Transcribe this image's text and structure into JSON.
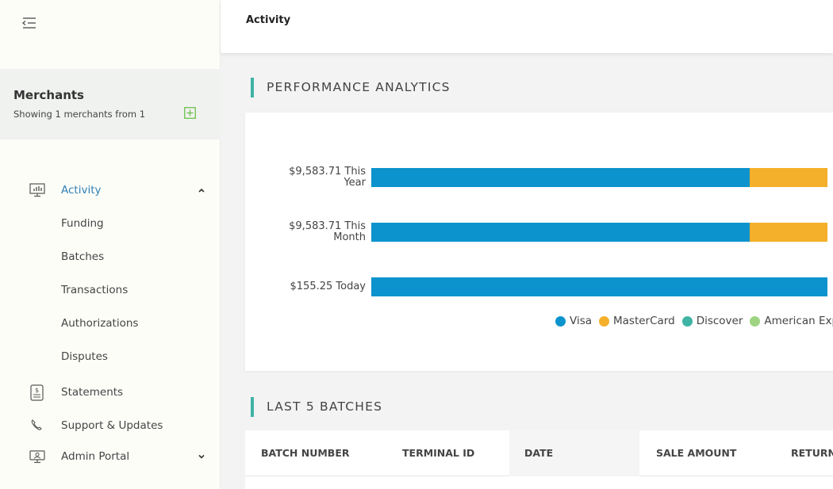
{
  "header": {
    "title": "Activity"
  },
  "merchants": {
    "title": "Merchants",
    "summary": "Showing 1 merchants from 1"
  },
  "nav": {
    "activity": "Activity",
    "sub_items": [
      "Funding",
      "Batches",
      "Transactions",
      "Authorizations",
      "Disputes"
    ],
    "statements": "Statements",
    "support": "Support & Updates",
    "admin": "Admin Portal"
  },
  "analytics": {
    "title": "PERFORMANCE ANALYTICS"
  },
  "chart_data": {
    "type": "bar",
    "orientation": "horizontal",
    "stacked": true,
    "categories": [
      {
        "amount": "$9,583.71",
        "line1": "$9,583.71 This",
        "line2": "Year"
      },
      {
        "amount": "$9,583.71",
        "line1": "$9,583.71 This",
        "line2": "Month"
      },
      {
        "amount": "$155.25",
        "line1": "$155.25 Today",
        "line2": ""
      }
    ],
    "series": [
      {
        "name": "Visa",
        "color": "#0c93cd",
        "values": [
          0.83,
          0.83,
          1.0
        ]
      },
      {
        "name": "MasterCard",
        "color": "#f5b02b",
        "values": [
          0.17,
          0.17,
          0
        ]
      },
      {
        "name": "Discover",
        "color": "#3fb3a4",
        "values": [
          0,
          0,
          0
        ]
      },
      {
        "name": "American Express",
        "color": "#9ed481",
        "values": [
          0,
          0,
          0
        ]
      }
    ],
    "legend": [
      "Visa",
      "MasterCard",
      "Discover",
      "American Expr"
    ]
  },
  "batches": {
    "title": "LAST 5 BATCHES",
    "columns": [
      "BATCH NUMBER",
      "TERMINAL ID",
      "DATE",
      "SALE AMOUNT",
      "RETURN"
    ]
  }
}
